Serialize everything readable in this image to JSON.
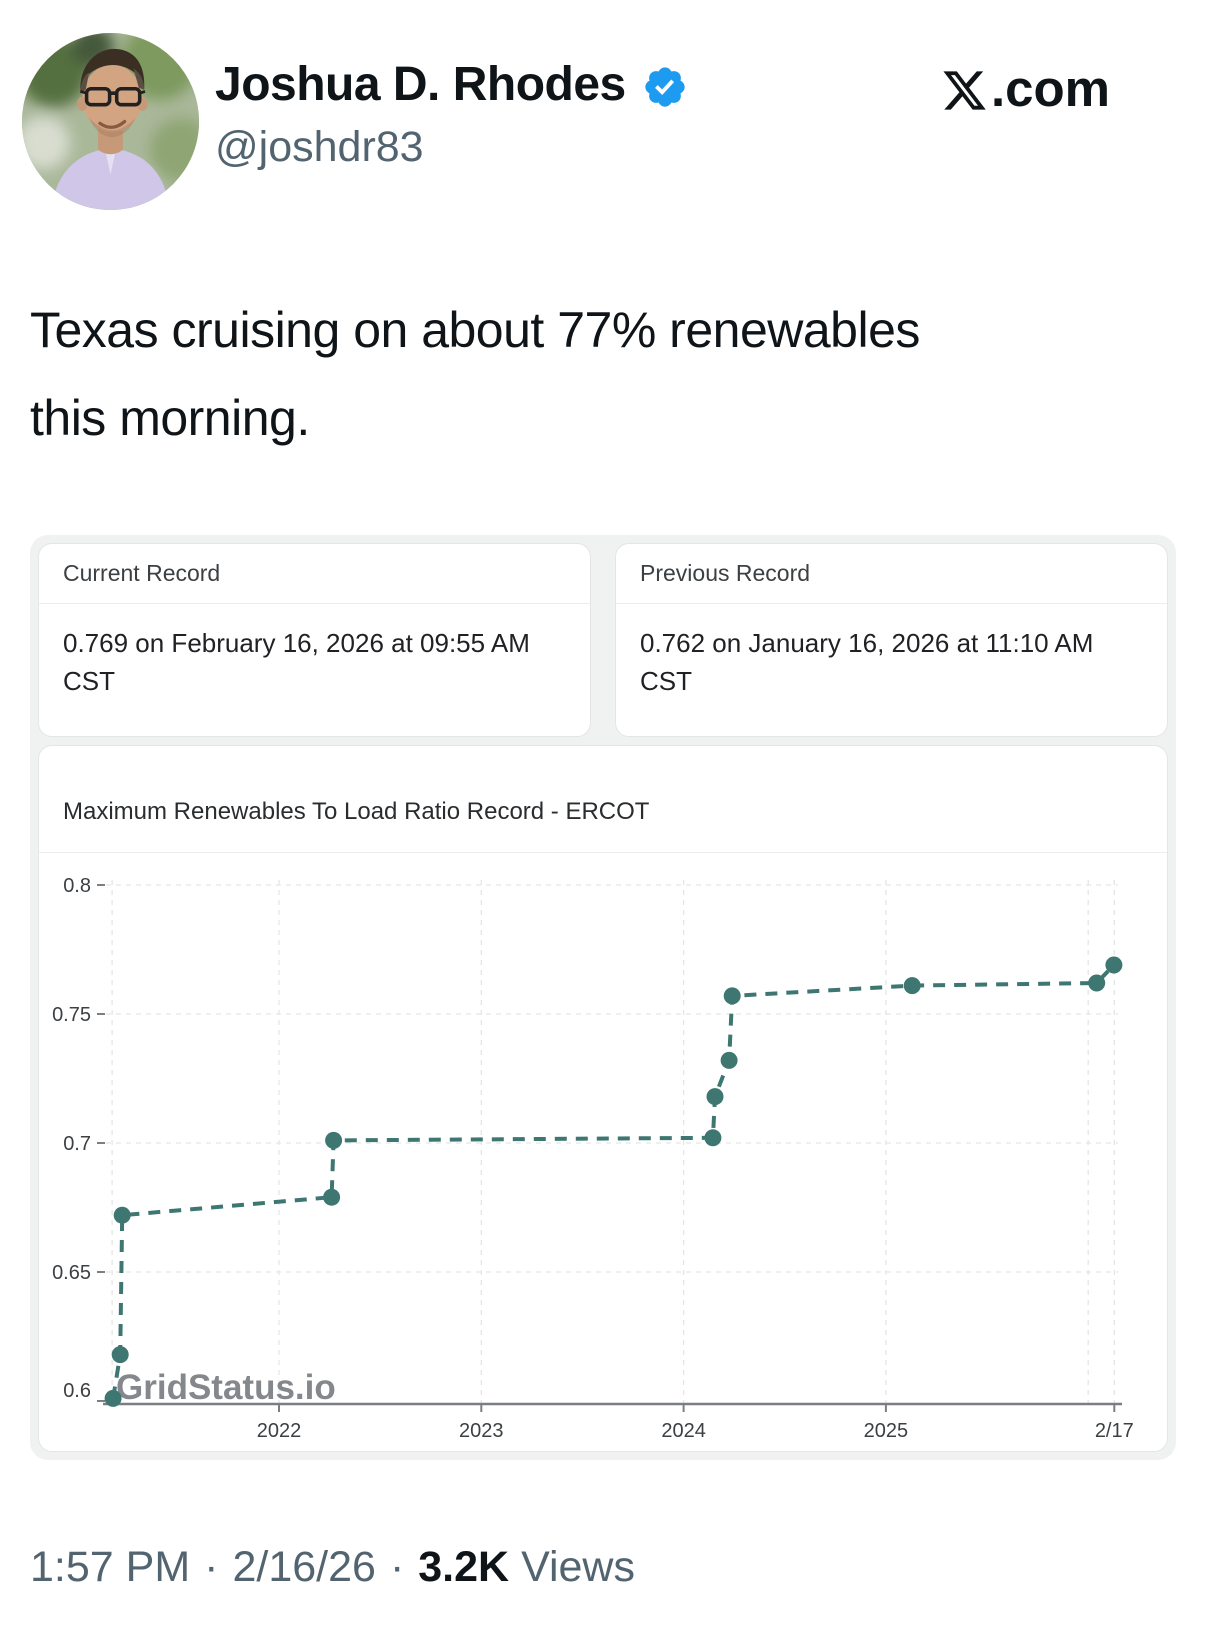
{
  "colors": {
    "accent_teal": "#3e7672",
    "verified_blue": "#1d9bf0",
    "text_primary": "#0f1419",
    "text_secondary": "#536471",
    "widget_background": "#f0f1f1",
    "card_border": "#e3e5e7",
    "gridline": "#e4e6e5"
  },
  "header": {
    "display_name": "Joshua D. Rhodes",
    "handle": "@joshdr83",
    "verified_icon": "verified-checkmark-badge",
    "site_logo_icon": "x-logo",
    "site_suffix": ".com"
  },
  "tweet": {
    "text": "Texas cruising on about 77% renewables this morning.",
    "lines": [
      "Texas cruising on about 77% renewables",
      "this morning."
    ]
  },
  "record_cards": [
    {
      "title": "Current Record",
      "value": "0.769 on February 16, 2026 at 09:55 AM CST"
    },
    {
      "title": "Previous Record",
      "value": "0.762 on January 16, 2026 at 11:10 AM CST"
    }
  ],
  "chart_card": {
    "title": "Maximum Renewables To Load Ratio Record - ERCOT",
    "watermark": "GridStatus.io"
  },
  "chart_data": {
    "type": "line",
    "title": "Maximum Renewables To Load Ratio Record - ERCOT",
    "series_name": "Maximum renewables-to-load ratio record",
    "line_style": "dashed",
    "color": "#3e7672",
    "x_unit": "decimal_year",
    "xlim": [
      2021.14,
      2026.14
    ],
    "ylim": [
      0.598,
      0.804
    ],
    "grid": true,
    "points": [
      {
        "x": 2021.18,
        "y": 0.601
      },
      {
        "x": 2021.215,
        "y": 0.618
      },
      {
        "x": 2021.225,
        "y": 0.672
      },
      {
        "x": 2022.26,
        "y": 0.679
      },
      {
        "x": 2022.27,
        "y": 0.701
      },
      {
        "x": 2024.145,
        "y": 0.702
      },
      {
        "x": 2024.155,
        "y": 0.718
      },
      {
        "x": 2024.225,
        "y": 0.732
      },
      {
        "x": 2024.24,
        "y": 0.757
      },
      {
        "x": 2025.13,
        "y": 0.761
      },
      {
        "x": 2026.042,
        "y": 0.762
      },
      {
        "x": 2026.127,
        "y": 0.769
      }
    ],
    "x_ticks": [
      {
        "x": 2022,
        "label": "2022"
      },
      {
        "x": 2023,
        "label": "2023"
      },
      {
        "x": 2024,
        "label": "2024"
      },
      {
        "x": 2025,
        "label": "2025"
      },
      {
        "x": 2026.129,
        "label": "2/17"
      }
    ],
    "x_gridlines_unlabeled": [
      2021.175,
      2026.0
    ],
    "y_ticks": [
      {
        "y": 0.6,
        "label": "0.6"
      },
      {
        "y": 0.65,
        "label": "0.65"
      },
      {
        "y": 0.7,
        "label": "0.7"
      },
      {
        "y": 0.75,
        "label": "0.75"
      },
      {
        "y": 0.8,
        "label": "0.8"
      }
    ],
    "y_gridlines": [
      0.65,
      0.7,
      0.75,
      0.8
    ]
  },
  "footer": {
    "time": "1:57 PM",
    "separator": "·",
    "date": "2/16/26",
    "views_count": "3.2K",
    "views_label": "Views"
  }
}
